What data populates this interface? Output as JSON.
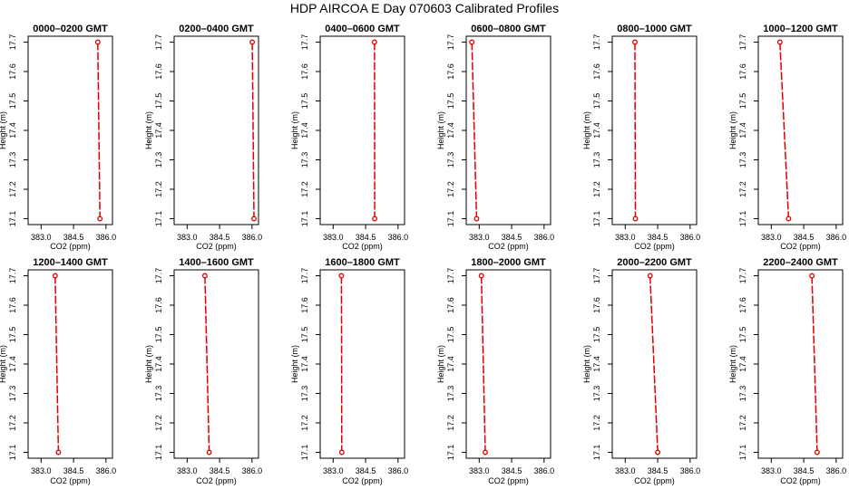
{
  "title": "HDP  AIRCOA E  Day 070603  Calibrated Profiles",
  "colors": {
    "profile_line": "#e00000",
    "axis": "#000000",
    "background": "#ffffff"
  },
  "chart_data": [
    {
      "type": "line",
      "title": "0000–0200 GMT",
      "xlabel": "CO2 (ppm)",
      "ylabel": "Height (m)",
      "xlim": [
        382.4,
        386.3
      ],
      "ylim": [
        17.08,
        17.72
      ],
      "xticks": [
        383.0,
        384.5,
        386.0
      ],
      "xticklabels": [
        "383.0",
        "384.5",
        "386.0"
      ],
      "yticks": [
        17.1,
        17.2,
        17.3,
        17.4,
        17.5,
        17.6,
        17.7
      ],
      "yticklabels": [
        "17.1",
        "17.2",
        "17.3",
        "17.4",
        "17.5",
        "17.6",
        "17.7"
      ],
      "series": [
        {
          "x": [
            385.62,
            385.72
          ],
          "y": [
            17.7,
            17.1
          ]
        }
      ]
    },
    {
      "type": "line",
      "title": "0200–0400 GMT",
      "xlabel": "CO2 (ppm)",
      "ylabel": "Height (m)",
      "xlim": [
        382.4,
        386.3
      ],
      "ylim": [
        17.08,
        17.72
      ],
      "xticks": [
        383.0,
        384.5,
        386.0
      ],
      "xticklabels": [
        "383.0",
        "384.5",
        "386.0"
      ],
      "yticks": [
        17.1,
        17.2,
        17.3,
        17.4,
        17.5,
        17.6,
        17.7
      ],
      "yticklabels": [
        "17.1",
        "17.2",
        "17.3",
        "17.4",
        "17.5",
        "17.6",
        "17.7"
      ],
      "series": [
        {
          "x": [
            386.01,
            386.09
          ],
          "y": [
            17.7,
            17.1
          ]
        }
      ]
    },
    {
      "type": "line",
      "title": "0400–0600 GMT",
      "xlabel": "CO2 (ppm)",
      "ylabel": "Height (m)",
      "xlim": [
        382.4,
        386.3
      ],
      "ylim": [
        17.08,
        17.72
      ],
      "xticks": [
        383.0,
        384.5,
        386.0
      ],
      "xticklabels": [
        "383.0",
        "384.5",
        "386.0"
      ],
      "yticks": [
        17.1,
        17.2,
        17.3,
        17.4,
        17.5,
        17.6,
        17.7
      ],
      "yticklabels": [
        "17.1",
        "17.2",
        "17.3",
        "17.4",
        "17.5",
        "17.6",
        "17.7"
      ],
      "series": [
        {
          "x": [
            384.91,
            384.92
          ],
          "y": [
            17.7,
            17.1
          ]
        }
      ]
    },
    {
      "type": "line",
      "title": "0600–0800 GMT",
      "xlabel": "CO2 (ppm)",
      "ylabel": "Height (m)",
      "xlim": [
        382.4,
        386.3
      ],
      "ylim": [
        17.08,
        17.72
      ],
      "xticks": [
        383.0,
        384.5,
        386.0
      ],
      "xticklabels": [
        "383.0",
        "384.5",
        "386.0"
      ],
      "yticks": [
        17.1,
        17.2,
        17.3,
        17.4,
        17.5,
        17.6,
        17.7
      ],
      "yticklabels": [
        "17.1",
        "17.2",
        "17.3",
        "17.4",
        "17.5",
        "17.6",
        "17.7"
      ],
      "series": [
        {
          "x": [
            382.66,
            382.88
          ],
          "y": [
            17.7,
            17.1
          ]
        }
      ]
    },
    {
      "type": "line",
      "title": "0800–1000 GMT",
      "xlabel": "CO2 (ppm)",
      "ylabel": "Height (m)",
      "xlim": [
        382.4,
        386.3
      ],
      "ylim": [
        17.08,
        17.72
      ],
      "xticks": [
        383.0,
        384.5,
        386.0
      ],
      "xticklabels": [
        "383.0",
        "384.5",
        "386.0"
      ],
      "yticks": [
        17.1,
        17.2,
        17.3,
        17.4,
        17.5,
        17.6,
        17.7
      ],
      "yticklabels": [
        "17.1",
        "17.2",
        "17.3",
        "17.4",
        "17.5",
        "17.6",
        "17.7"
      ],
      "series": [
        {
          "x": [
            383.45,
            383.47
          ],
          "y": [
            17.7,
            17.1
          ]
        }
      ]
    },
    {
      "type": "line",
      "title": "1000–1200 GMT",
      "xlabel": "CO2 (ppm)",
      "ylabel": "Height (m)",
      "xlim": [
        382.4,
        386.3
      ],
      "ylim": [
        17.08,
        17.72
      ],
      "xticks": [
        383.0,
        384.5,
        386.0
      ],
      "xticklabels": [
        "383.0",
        "384.5",
        "386.0"
      ],
      "yticks": [
        17.1,
        17.2,
        17.3,
        17.4,
        17.5,
        17.6,
        17.7
      ],
      "yticklabels": [
        "17.1",
        "17.2",
        "17.3",
        "17.4",
        "17.5",
        "17.6",
        "17.7"
      ],
      "series": [
        {
          "x": [
            383.4,
            383.8
          ],
          "y": [
            17.7,
            17.1
          ]
        }
      ]
    },
    {
      "type": "line",
      "title": "1200–1400 GMT",
      "xlabel": "CO2 (ppm)",
      "ylabel": "Height (m)",
      "xlim": [
        382.4,
        386.3
      ],
      "ylim": [
        17.08,
        17.72
      ],
      "xticks": [
        383.0,
        384.5,
        386.0
      ],
      "xticklabels": [
        "383.0",
        "384.5",
        "386.0"
      ],
      "yticks": [
        17.1,
        17.2,
        17.3,
        17.4,
        17.5,
        17.6,
        17.7
      ],
      "yticklabels": [
        "17.1",
        "17.2",
        "17.3",
        "17.4",
        "17.5",
        "17.6",
        "17.7"
      ],
      "series": [
        {
          "x": [
            383.65,
            383.8
          ],
          "y": [
            17.7,
            17.1
          ]
        }
      ]
    },
    {
      "type": "line",
      "title": "1400–1600 GMT",
      "xlabel": "CO2 (ppm)",
      "ylabel": "Height (m)",
      "xlim": [
        382.4,
        386.3
      ],
      "ylim": [
        17.08,
        17.72
      ],
      "xticks": [
        383.0,
        384.5,
        386.0
      ],
      "xticklabels": [
        "383.0",
        "384.5",
        "386.0"
      ],
      "yticks": [
        17.1,
        17.2,
        17.3,
        17.4,
        17.5,
        17.6,
        17.7
      ],
      "yticklabels": [
        "17.1",
        "17.2",
        "17.3",
        "17.4",
        "17.5",
        "17.6",
        "17.7"
      ],
      "series": [
        {
          "x": [
            383.82,
            384.02
          ],
          "y": [
            17.7,
            17.1
          ]
        }
      ]
    },
    {
      "type": "line",
      "title": "1600–1800 GMT",
      "xlabel": "CO2 (ppm)",
      "ylabel": "Height (m)",
      "xlim": [
        382.4,
        386.3
      ],
      "ylim": [
        17.08,
        17.72
      ],
      "xticks": [
        383.0,
        384.5,
        386.0
      ],
      "xticklabels": [
        "383.0",
        "384.5",
        "386.0"
      ],
      "yticks": [
        17.1,
        17.2,
        17.3,
        17.4,
        17.5,
        17.6,
        17.7
      ],
      "yticklabels": [
        "17.1",
        "17.2",
        "17.3",
        "17.4",
        "17.5",
        "17.6",
        "17.7"
      ],
      "series": [
        {
          "x": [
            383.38,
            383.4
          ],
          "y": [
            17.7,
            17.1
          ]
        }
      ]
    },
    {
      "type": "line",
      "title": "1800–2000 GMT",
      "xlabel": "CO2 (ppm)",
      "ylabel": "Height (m)",
      "xlim": [
        382.4,
        386.3
      ],
      "ylim": [
        17.08,
        17.72
      ],
      "xticks": [
        383.0,
        384.5,
        386.0
      ],
      "xticklabels": [
        "383.0",
        "384.5",
        "386.0"
      ],
      "yticks": [
        17.1,
        17.2,
        17.3,
        17.4,
        17.5,
        17.6,
        17.7
      ],
      "yticklabels": [
        "17.1",
        "17.2",
        "17.3",
        "17.4",
        "17.5",
        "17.6",
        "17.7"
      ],
      "series": [
        {
          "x": [
            383.1,
            383.28
          ],
          "y": [
            17.7,
            17.1
          ]
        }
      ]
    },
    {
      "type": "line",
      "title": "2000–2200 GMT",
      "xlabel": "CO2 (ppm)",
      "ylabel": "Height (m)",
      "xlim": [
        382.4,
        386.3
      ],
      "ylim": [
        17.08,
        17.72
      ],
      "xticks": [
        383.0,
        384.5,
        386.0
      ],
      "xticklabels": [
        "383.0",
        "384.5",
        "386.0"
      ],
      "yticks": [
        17.1,
        17.2,
        17.3,
        17.4,
        17.5,
        17.6,
        17.7
      ],
      "yticklabels": [
        "17.1",
        "17.2",
        "17.3",
        "17.4",
        "17.5",
        "17.6",
        "17.7"
      ],
      "series": [
        {
          "x": [
            384.15,
            384.5
          ],
          "y": [
            17.7,
            17.1
          ]
        }
      ]
    },
    {
      "type": "line",
      "title": "2200–2400 GMT",
      "xlabel": "CO2 (ppm)",
      "ylabel": "Height (m)",
      "xlim": [
        382.4,
        386.3
      ],
      "ylim": [
        17.08,
        17.72
      ],
      "xticks": [
        383.0,
        384.5,
        386.0
      ],
      "xticklabels": [
        "383.0",
        "384.5",
        "386.0"
      ],
      "yticks": [
        17.1,
        17.2,
        17.3,
        17.4,
        17.5,
        17.6,
        17.7
      ],
      "yticklabels": [
        "17.1",
        "17.2",
        "17.3",
        "17.4",
        "17.5",
        "17.6",
        "17.7"
      ],
      "series": [
        {
          "x": [
            384.88,
            385.12
          ],
          "y": [
            17.7,
            17.1
          ]
        }
      ]
    }
  ]
}
